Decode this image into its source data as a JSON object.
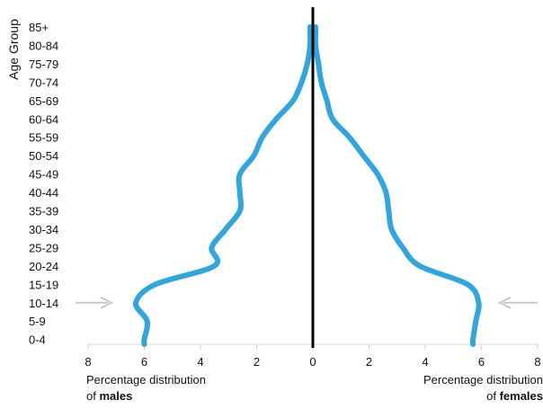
{
  "chart_data": {
    "type": "line",
    "ylabel": "Age Group",
    "categories": [
      "0-4",
      "5-9",
      "10-14",
      "15-19",
      "20-24",
      "25-29",
      "30-34",
      "35-39",
      "40-44",
      "45-49",
      "50-54",
      "55-59",
      "60-64",
      "65-69",
      "70-74",
      "75-79",
      "80-84",
      "85+"
    ],
    "x_ticks": [
      "8",
      "6",
      "4",
      "2",
      "0",
      "2",
      "4",
      "6",
      "8"
    ],
    "xlim": [
      -8,
      8
    ],
    "males_caption": {
      "prefix": "Percentage distribution",
      "line2_prefix": "of ",
      "bold": "males"
    },
    "females_caption": {
      "prefix": "Percentage distribution",
      "line2_prefix": "of ",
      "bold": "females"
    },
    "series": [
      {
        "side": "left",
        "values": [
          6.0,
          5.9,
          6.3,
          5.6,
          3.5,
          3.6,
          3.1,
          2.6,
          2.6,
          2.6,
          2.1,
          1.8,
          1.3,
          0.7,
          0.4,
          0.2,
          0.1,
          0.1
        ]
      },
      {
        "side": "right",
        "values": [
          5.7,
          5.8,
          5.9,
          5.5,
          3.8,
          3.2,
          2.8,
          2.7,
          2.6,
          2.3,
          1.8,
          1.3,
          0.7,
          0.5,
          0.3,
          0.2,
          0.1,
          0.1
        ]
      }
    ],
    "line_color": "#2fa6de",
    "axis_color": "#000000",
    "arrow_color": "#c9c9c9",
    "arrow_marks": "10-14"
  }
}
